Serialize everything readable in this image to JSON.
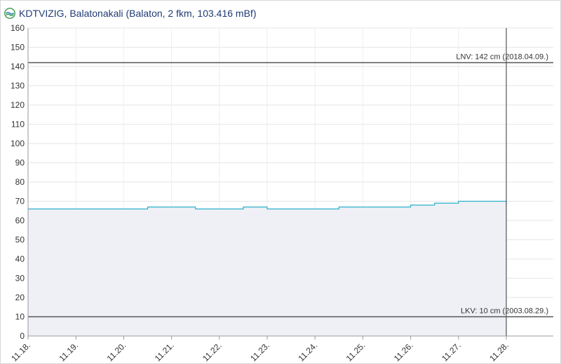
{
  "header": {
    "title": "KDTVIZIG, Balatonakali (Balaton, 2 fkm, 103.416 mBf)",
    "logo_icon": "kdtvizig-logo-icon"
  },
  "chart_data": {
    "type": "area",
    "title": "",
    "xlabel": "",
    "ylabel": "",
    "ylim": [
      0,
      160
    ],
    "yticks": [
      0,
      10,
      20,
      30,
      40,
      50,
      60,
      70,
      80,
      90,
      100,
      110,
      120,
      130,
      140,
      150,
      160
    ],
    "x_tick_labels": [
      "11.18.",
      "11.19.",
      "11.20.",
      "11.21.",
      "11.22.",
      "11.23.",
      "11.24.",
      "11.25.",
      "11.26.",
      "11.27.",
      "11.28."
    ],
    "xlim_days": [
      0,
      10
    ],
    "grid": true,
    "series": [
      {
        "color": "#2bb0c9",
        "fill": "#eef0f6",
        "x_days": [
          0,
          0.5,
          1,
          1.5,
          2,
          2.5,
          3,
          3.5,
          4,
          4.5,
          5,
          5.5,
          6,
          6.5,
          7,
          7.5,
          8,
          8.5,
          9,
          9.5,
          10
        ],
        "values": [
          66,
          66,
          66,
          66,
          66,
          67,
          67,
          66,
          66,
          67,
          66,
          66,
          66,
          67,
          67,
          67,
          68,
          69,
          70,
          70,
          68
        ]
      }
    ],
    "reference_lines": [
      {
        "value": 142,
        "label": "LNV: 142 cm (2018.04.09.)",
        "color": "#555555"
      },
      {
        "value": 10,
        "label": "LKV: 10 cm (2003.08.29.)",
        "color": "#555555"
      }
    ],
    "current_time_marker": {
      "x_days": 10,
      "color": "#555555"
    }
  }
}
